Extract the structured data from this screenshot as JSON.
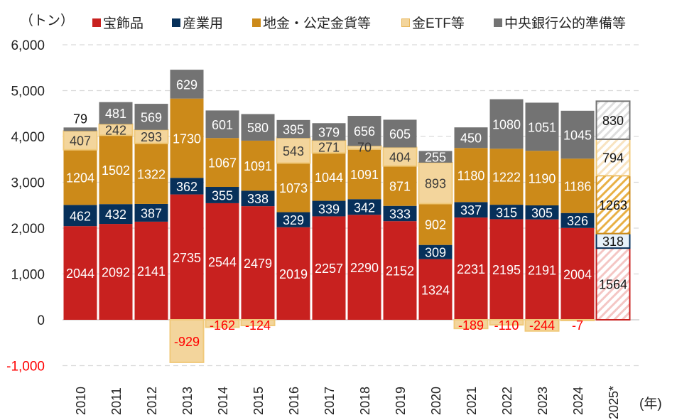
{
  "chart_data": {
    "type": "bar",
    "stacked": true,
    "unit_label": "（トン）",
    "xlabel_unit": "(年)",
    "ylim": [
      -1000,
      6000
    ],
    "yticks": [
      {
        "value": 6000,
        "label": "6,000"
      },
      {
        "value": 5000,
        "label": "5,000"
      },
      {
        "value": 4000,
        "label": "4,000"
      },
      {
        "value": 3000,
        "label": "3,000"
      },
      {
        "value": 2000,
        "label": "2,000"
      },
      {
        "value": 1000,
        "label": "1,000"
      },
      {
        "value": 0,
        "label": "0"
      },
      {
        "value": -1000,
        "label": "-1,000"
      }
    ],
    "grid": true,
    "legend_position": "top",
    "categories": [
      "2010",
      "2011",
      "2012",
      "2013",
      "2014",
      "2015",
      "2016",
      "2017",
      "2018",
      "2019",
      "2020",
      "2021",
      "2022",
      "2023",
      "2024",
      "2025*"
    ],
    "forecast_categories": [
      "2025*"
    ],
    "series": [
      {
        "name": "宝飾品",
        "color": "#c8211f",
        "values": [
          2044,
          2092,
          2141,
          2735,
          2544,
          2479,
          2019,
          2257,
          2290,
          2152,
          1324,
          2231,
          2195,
          2191,
          2004,
          1564
        ]
      },
      {
        "name": "産業用",
        "color": "#07305a",
        "values": [
          462,
          432,
          387,
          362,
          355,
          338,
          329,
          339,
          342,
          333,
          309,
          337,
          315,
          305,
          326,
          318
        ]
      },
      {
        "name": "地金・公定金貨等",
        "color": "#cc8a19",
        "values": [
          1204,
          1502,
          1322,
          1730,
          1067,
          1091,
          1073,
          1044,
          1091,
          871,
          902,
          1180,
          1222,
          1190,
          1186,
          1263
        ]
      },
      {
        "name": "金ETF等",
        "color": "#f3d59c",
        "values": [
          407,
          242,
          293,
          -929,
          -162,
          -124,
          543,
          271,
          70,
          404,
          893,
          -189,
          -110,
          -244,
          -7,
          794
        ]
      },
      {
        "name": "中央銀行公的準備等",
        "color": "#737373",
        "values": [
          79,
          481,
          569,
          629,
          601,
          580,
          395,
          379,
          656,
          605,
          255,
          450,
          1080,
          1051,
          1045,
          830
        ]
      }
    ]
  },
  "colors": {
    "axis_text": "#222222",
    "negative_text": "#ff0000",
    "gridline": "#d9d9d9"
  }
}
